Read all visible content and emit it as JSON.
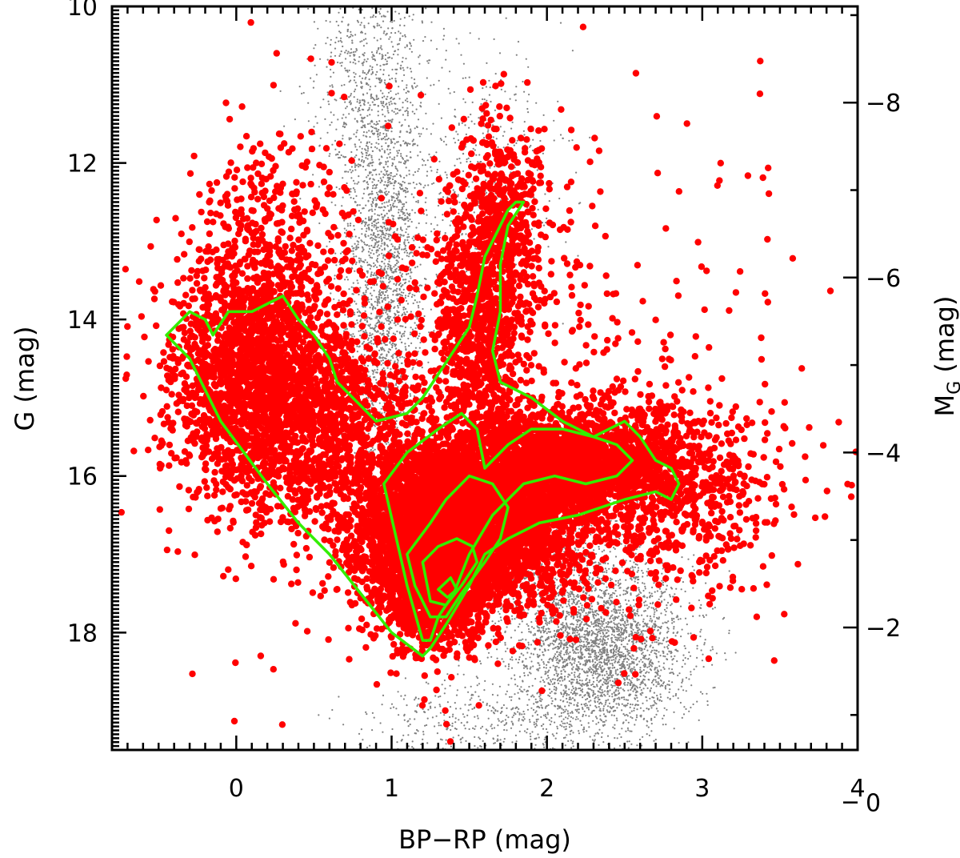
{
  "chart_data": {
    "type": "scatter",
    "xlabel": "BP−RP (mag)",
    "ylabel": "G (mag)",
    "y2label_main": "M",
    "y2label_sub": "G",
    "y2label_unit": " (mag)",
    "xlim": [
      -0.8,
      4.0
    ],
    "ylim": [
      19.5,
      10.0
    ],
    "y2lim": [
      -0.6,
      -9.1
    ],
    "x_ticks": [
      0,
      1,
      2,
      3,
      4
    ],
    "x_tick_labels": [
      "0",
      "1",
      "2",
      "3",
      "4"
    ],
    "y_ticks": [
      10,
      12,
      14,
      16,
      18
    ],
    "y_tick_labels": [
      "10",
      "12",
      "14",
      "16",
      "18"
    ],
    "y2_ticks": [
      -8,
      -6,
      -4,
      -2,
      0
    ],
    "y2_tick_labels": [
      "−8",
      "−6",
      "−4",
      "−2",
      "0"
    ],
    "colors": {
      "background_stars": "#808080",
      "sample_stars": "#ff0000",
      "contours": "#33ee00",
      "axes": "#000000"
    },
    "background_population": [
      {
        "cx": 0.95,
        "cy": 13.6,
        "sx": 0.13,
        "sy": 1.3,
        "n": 2200
      },
      {
        "cx": 0.88,
        "cy": 11.0,
        "sx": 0.18,
        "sy": 0.9,
        "n": 800
      },
      {
        "cx": 2.35,
        "cy": 18.2,
        "sx": 0.28,
        "sy": 0.55,
        "n": 3000
      },
      {
        "cx": 1.9,
        "cy": 17.2,
        "sx": 0.35,
        "sy": 0.5,
        "n": 900
      },
      {
        "cx": 1.6,
        "cy": 19.2,
        "sx": 0.4,
        "sy": 0.3,
        "n": 500
      },
      {
        "cx": 1.6,
        "cy": 12.0,
        "sx": 0.25,
        "sy": 0.8,
        "n": 400
      }
    ],
    "sample_population": [
      {
        "cx": 1.45,
        "cy": 16.6,
        "sx": 0.35,
        "sy": 0.5,
        "n": 5000
      },
      {
        "cx": 1.25,
        "cy": 17.3,
        "sx": 0.18,
        "sy": 0.45,
        "n": 1600
      },
      {
        "cx": 0.1,
        "cy": 14.8,
        "sx": 0.28,
        "sy": 0.8,
        "n": 1700
      },
      {
        "cx": 0.2,
        "cy": 13.3,
        "sx": 0.22,
        "sy": 0.9,
        "n": 500
      },
      {
        "cx": 2.2,
        "cy": 15.8,
        "sx": 0.42,
        "sy": 0.35,
        "n": 2000
      },
      {
        "cx": 2.8,
        "cy": 16.3,
        "sx": 0.35,
        "sy": 0.6,
        "n": 500
      },
      {
        "cx": 1.6,
        "cy": 13.9,
        "sx": 0.15,
        "sy": 0.9,
        "n": 1000
      },
      {
        "cx": 1.75,
        "cy": 12.6,
        "sx": 0.13,
        "sy": 0.6,
        "n": 300
      },
      {
        "cx": 0.55,
        "cy": 15.3,
        "sx": 0.3,
        "sy": 0.6,
        "n": 900
      },
      {
        "cx": 1.7,
        "cy": 15.0,
        "sx": 1.0,
        "sy": 1.6,
        "n": 600
      }
    ],
    "contours": [
      {
        "level": 1,
        "x": [
          -0.45,
          -0.3,
          -0.2,
          -0.15,
          -0.05,
          0.1,
          0.3,
          0.4,
          0.5,
          0.6,
          0.65,
          0.8,
          0.9,
          1.1,
          1.2,
          1.3,
          1.4,
          1.5,
          1.55,
          1.6,
          1.7,
          1.75,
          1.8,
          1.85,
          1.75,
          1.7,
          1.7,
          1.65,
          1.7,
          1.9,
          2.1,
          2.3,
          2.5,
          2.6,
          2.7,
          2.8,
          2.85,
          2.8,
          2.7,
          2.5,
          2.2,
          1.95,
          1.75,
          1.6,
          1.5,
          1.35,
          1.25,
          1.2,
          1.0,
          0.8,
          0.6,
          0.4,
          0.2,
          0.05,
          -0.1,
          -0.2,
          -0.3,
          -0.45
        ],
        "y": [
          14.2,
          13.9,
          14.0,
          14.2,
          13.9,
          13.9,
          13.7,
          14.0,
          14.2,
          14.5,
          14.8,
          15.1,
          15.3,
          15.2,
          15.0,
          14.7,
          14.4,
          14.1,
          13.7,
          13.2,
          12.8,
          12.6,
          12.5,
          12.5,
          12.8,
          13.3,
          13.9,
          14.4,
          14.8,
          15.0,
          15.3,
          15.5,
          15.3,
          15.5,
          15.8,
          15.9,
          16.1,
          16.3,
          16.2,
          16.3,
          16.5,
          16.6,
          16.8,
          17.0,
          17.4,
          17.9,
          18.2,
          18.3,
          18.0,
          17.5,
          17.0,
          16.6,
          16.1,
          15.7,
          15.3,
          14.9,
          14.5,
          14.2
        ]
      },
      {
        "level": 2,
        "x": [
          0.95,
          1.1,
          1.3,
          1.45,
          1.55,
          1.6,
          1.75,
          1.9,
          2.1,
          2.3,
          2.45,
          2.55,
          2.45,
          2.25,
          2.05,
          1.85,
          1.65,
          1.5,
          1.4,
          1.3,
          1.25,
          1.2,
          1.1,
          0.95
        ],
        "y": [
          16.1,
          15.7,
          15.4,
          15.2,
          15.4,
          15.9,
          15.6,
          15.4,
          15.4,
          15.5,
          15.6,
          15.8,
          16.0,
          16.1,
          16.0,
          16.1,
          16.5,
          17.0,
          17.5,
          17.8,
          18.1,
          18.1,
          17.4,
          16.1
        ]
      },
      {
        "level": 3,
        "x": [
          1.1,
          1.25,
          1.35,
          1.5,
          1.65,
          1.75,
          1.7,
          1.6,
          1.45,
          1.35,
          1.25,
          1.15,
          1.1
        ],
        "y": [
          17.0,
          16.6,
          16.3,
          16.0,
          16.1,
          16.4,
          16.8,
          17.1,
          17.5,
          17.8,
          17.8,
          17.4,
          17.0
        ]
      },
      {
        "level": 4,
        "x": [
          1.2,
          1.3,
          1.42,
          1.52,
          1.55,
          1.45,
          1.35,
          1.25,
          1.2
        ],
        "y": [
          17.1,
          16.9,
          16.8,
          16.9,
          17.1,
          17.4,
          17.65,
          17.6,
          17.1
        ]
      },
      {
        "level": 5,
        "x": [
          1.3,
          1.38,
          1.42,
          1.36,
          1.3
        ],
        "y": [
          17.45,
          17.3,
          17.45,
          17.55,
          17.45
        ]
      }
    ]
  }
}
